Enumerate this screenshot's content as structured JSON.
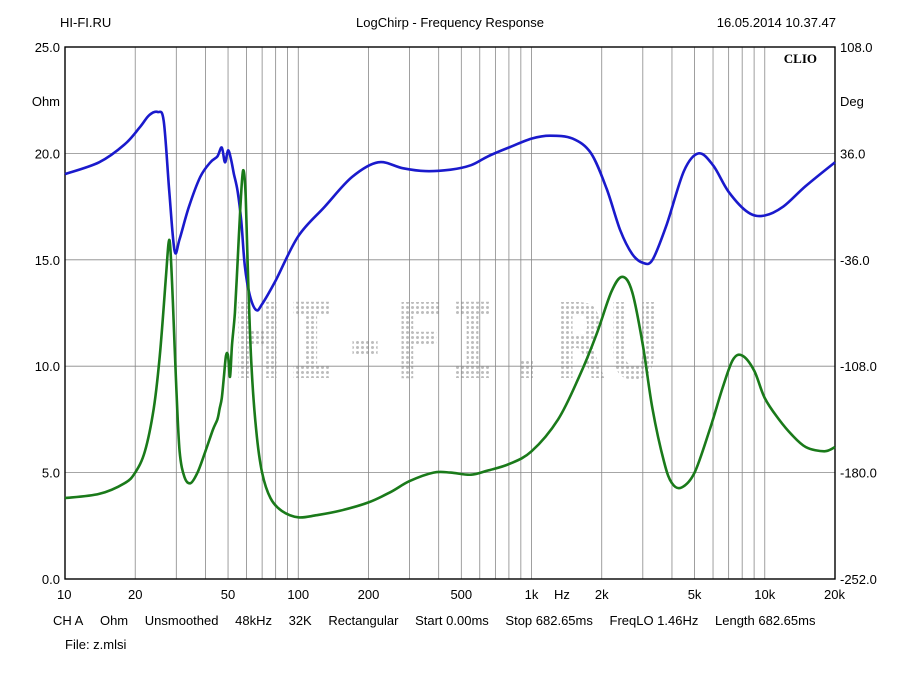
{
  "header": {
    "left": "HI-FI.RU",
    "center": "LogChirp - Frequency Response",
    "right": "16.05.2014 10.37.47"
  },
  "settings_line": [
    "CH A",
    "Ohm",
    "Unsmoothed",
    "48kHz",
    "32K",
    "Rectangular",
    "Start 0.00ms",
    "Stop 682.65ms",
    "FreqLO 1.46Hz",
    "Length 682.65ms"
  ],
  "file_label": "File: z.mlsi",
  "colors": {
    "impedance": "#1a1acc",
    "phase": "#1a7a1a",
    "grid": "#888888"
  },
  "chart_data": {
    "type": "line",
    "title": "LogChirp - Frequency Response",
    "brand": "CLIO",
    "watermark": "HI-FI.RU",
    "x_scale": "log",
    "xlim": [
      10,
      20000
    ],
    "xlabel": "Hz",
    "x_ticks": [
      {
        "v": 10,
        "label": "10"
      },
      {
        "v": 20,
        "label": "20"
      },
      {
        "v": 50,
        "label": "50"
      },
      {
        "v": 100,
        "label": "100"
      },
      {
        "v": 200,
        "label": "200"
      },
      {
        "v": 500,
        "label": "500"
      },
      {
        "v": 1000,
        "label": "1k"
      },
      {
        "v": 2000,
        "label": "2k"
      },
      {
        "v": 5000,
        "label": "5k"
      },
      {
        "v": 10000,
        "label": "10k"
      },
      {
        "v": 20000,
        "label": "20k"
      }
    ],
    "y_left": {
      "label": "Ohm",
      "lim": [
        0,
        25
      ],
      "ticks": [
        "0.0",
        "5.0",
        "10.0",
        "15.0",
        "20.0",
        "25.0"
      ]
    },
    "y_right": {
      "label": "Deg",
      "lim": [
        -252,
        108
      ],
      "ticks": [
        "-252.0",
        "-180.0",
        "-108.0",
        "-36.0",
        "36.0",
        "108.0"
      ]
    },
    "grid": true,
    "series": [
      {
        "axis": "right",
        "x": [
          10,
          14,
          18,
          21,
          23,
          25,
          26.5,
          28,
          29.5,
          31,
          34,
          38,
          42,
          45,
          47,
          48.5,
          50,
          51.5,
          53,
          55,
          57,
          59,
          62,
          66,
          70,
          80,
          100,
          130,
          170,
          220,
          280,
          350,
          450,
          550,
          650,
          800,
          1000,
          1200,
          1500,
          1800,
          2100,
          2400,
          2700,
          3000,
          3300,
          3800,
          4500,
          5200,
          6000,
          7000,
          8500,
          10000,
          12000,
          15000,
          20000
        ],
        "values": [
          22,
          30,
          42,
          54,
          62,
          64,
          58,
          10,
          -30,
          -22,
          0,
          20,
          30,
          34,
          40,
          30,
          38,
          32,
          22,
          10,
          -10,
          -40,
          -60,
          -70,
          -66,
          -50,
          -20,
          0,
          20,
          30,
          26,
          24,
          25,
          28,
          34,
          40,
          46,
          48,
          46,
          36,
          12,
          -16,
          -32,
          -38,
          -36,
          -12,
          24,
          36,
          28,
          10,
          -4,
          -6,
          0,
          14,
          30
        ]
      },
      {
        "axis": "left",
        "x": [
          10,
          14,
          18,
          20,
          22,
          24,
          25.5,
          27,
          27.8,
          28.3,
          29,
          30,
          31,
          32.5,
          34.5,
          37,
          40,
          43,
          45,
          46,
          47,
          48,
          49,
          50,
          51,
          52,
          53.5,
          55,
          56.5,
          58,
          59.5,
          61,
          63,
          66,
          70,
          76,
          85,
          100,
          120,
          150,
          200,
          250,
          300,
          380,
          450,
          550,
          650,
          800,
          1000,
          1300,
          1600,
          1900,
          2200,
          2450,
          2700,
          3000,
          3300,
          3700,
          4000,
          4400,
          5000,
          5800,
          6600,
          7300,
          8000,
          9000,
          10000,
          11500,
          13000,
          15000,
          18000,
          20000
        ],
        "values": [
          3.8,
          4.0,
          4.5,
          5.0,
          6.0,
          8.0,
          10.5,
          14.0,
          15.8,
          15.5,
          13.0,
          9.0,
          6.0,
          4.8,
          4.5,
          5.0,
          6.0,
          7.0,
          7.5,
          8.0,
          8.5,
          9.5,
          10.5,
          10.5,
          9.5,
          11.0,
          12.5,
          15.0,
          17.5,
          19.2,
          18.0,
          14.0,
          10.0,
          7.0,
          5.0,
          3.8,
          3.2,
          2.9,
          3.0,
          3.2,
          3.6,
          4.1,
          4.6,
          5.0,
          5.0,
          4.9,
          5.1,
          5.4,
          6.0,
          7.5,
          9.5,
          11.5,
          13.5,
          14.2,
          13.5,
          11.0,
          8.0,
          5.5,
          4.5,
          4.3,
          5.0,
          7.0,
          9.0,
          10.3,
          10.5,
          9.8,
          8.5,
          7.5,
          6.8,
          6.2,
          6.0,
          6.2
        ]
      }
    ]
  }
}
